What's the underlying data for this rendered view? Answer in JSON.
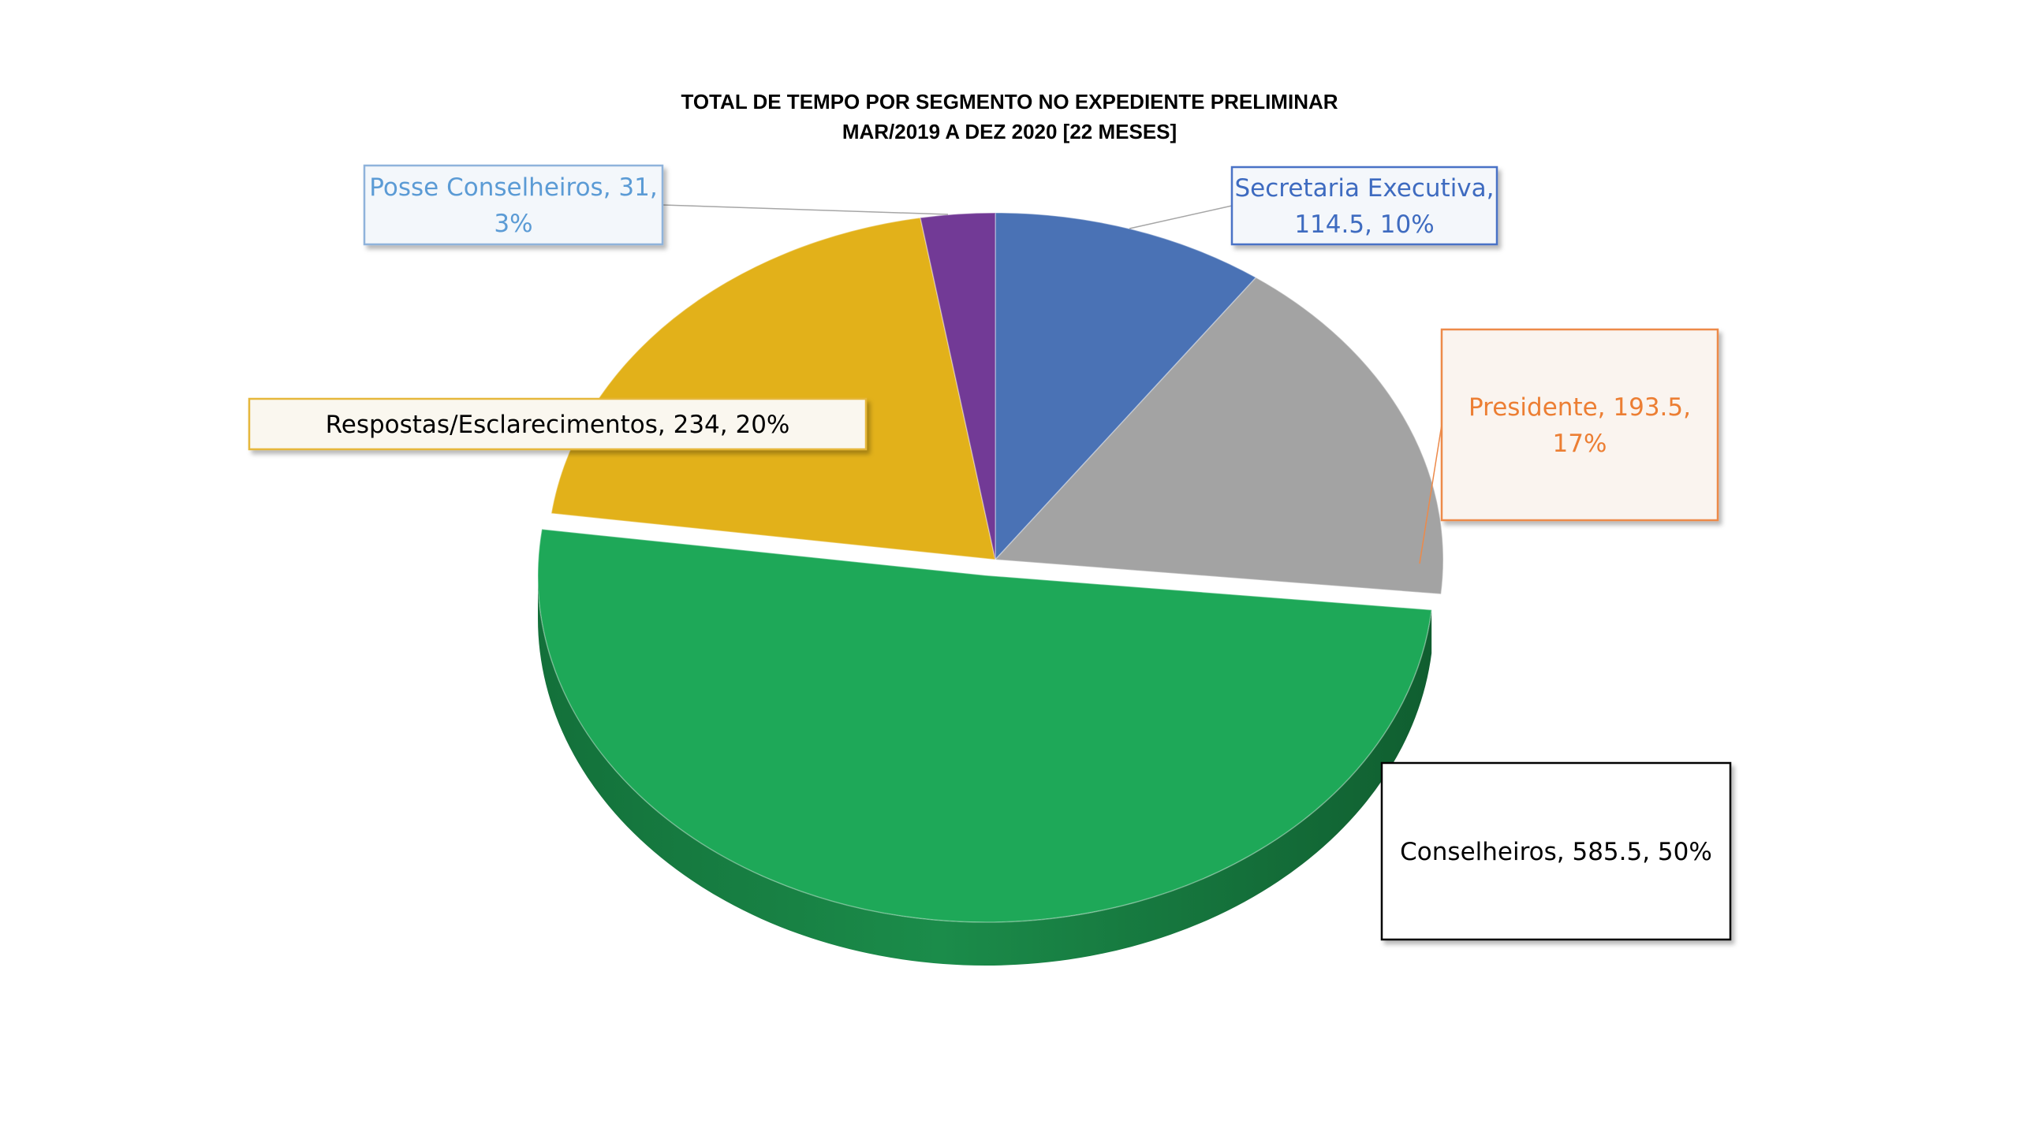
{
  "chart_data": {
    "type": "pie",
    "title_lines": [
      "TOTAL DE TEMPO POR SEGMENTO NO EXPEDIENTE PRELIMINAR",
      "MAR/2019 A DEZ 2020 [22 MESES]"
    ],
    "slices": [
      {
        "name": "Secretaria Executiva",
        "value": 114.5,
        "percent": "10%",
        "color": "#4a72b5",
        "label_color": "#3e6bc0",
        "label_lines": [
          "Secretaria Executiva,",
          "114.5, 10%"
        ]
      },
      {
        "name": "Presidente",
        "value": 193.5,
        "percent": "17%",
        "color": "#a3a3a3",
        "label_color": "#ec7e33",
        "label_lines": [
          "Presidente, 193.5,",
          "17%"
        ]
      },
      {
        "name": "Conselheiros",
        "value": 585.5,
        "percent": "50%",
        "color": "#1ea858",
        "label_color": "#000000",
        "label_lines": [
          "Conselheiros, 585.5, 50%"
        ]
      },
      {
        "name": "Respostas/Esclarecimentos",
        "value": 234,
        "percent": "20%",
        "color": "#e2b11a",
        "label_color": "#000000",
        "label_lines": [
          "Respostas/Esclarecimentos, 234, 20%"
        ]
      },
      {
        "name": "Posse Conselheiros",
        "value": 31,
        "percent": "3%",
        "color": "#723a96",
        "label_color": "#5b9bd5",
        "label_lines": [
          "Posse Conselheiros, 31,",
          "3%"
        ]
      }
    ],
    "legend": "none"
  }
}
